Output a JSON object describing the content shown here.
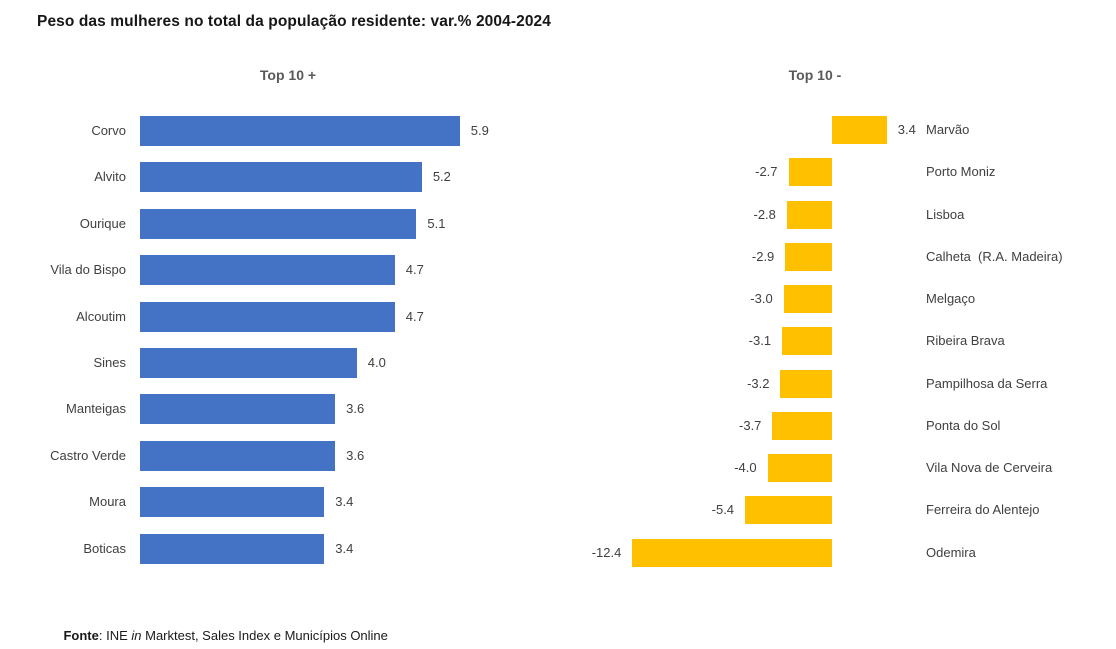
{
  "page": {
    "title": "Peso das mulheres no total da população residente: var.% 2004-2024",
    "background_color": "#ffffff"
  },
  "footer": {
    "source_label": "Fonte",
    "separator": ": ",
    "text_before_italic": "INE ",
    "italic_word": "in",
    "text_after_italic": " Marktest, Sales Index e Municípios Online"
  },
  "chart_data": [
    {
      "type": "bar",
      "orientation": "horizontal",
      "title": "Top 10 +",
      "bar_color": "#4472C4",
      "categories": [
        "Corvo",
        "Alvito",
        "Ourique",
        "Vila do Bispo",
        "Alcoutim",
        "Sines",
        "Manteigas",
        "Castro Verde",
        "Moura",
        "Boticas"
      ],
      "values": [
        5.9,
        5.2,
        5.1,
        4.7,
        4.7,
        4.0,
        3.6,
        3.6,
        3.4,
        3.4
      ],
      "value_decimals": 1,
      "xlim": [
        0,
        6.5
      ],
      "category_labels_position": "left",
      "data_labels_position": "outside-end",
      "grid": false,
      "axis_lines": false
    },
    {
      "type": "bar",
      "orientation": "horizontal",
      "title": "Top 10 -",
      "bar_color": "#FFC000",
      "categories": [
        "Marvão",
        "Porto Moniz",
        "Lisboa",
        "Calheta  (R.A. Madeira)",
        "Melgaço",
        "Ribeira Brava",
        "Pampilhosa da Serra",
        "Ponta do Sol",
        "Vila Nova de Cerveira",
        "Ferreira do Alentejo",
        "Odemira"
      ],
      "values": [
        3.4,
        -2.7,
        -2.8,
        -2.9,
        -3.0,
        -3.1,
        -3.2,
        -3.7,
        -4.0,
        -5.4,
        -12.4
      ],
      "value_decimals": 1,
      "xlim": [
        -12.4,
        3.4
      ],
      "category_labels_position": "right",
      "data_labels_position": "outside-end",
      "grid": false,
      "axis_lines": false
    }
  ]
}
